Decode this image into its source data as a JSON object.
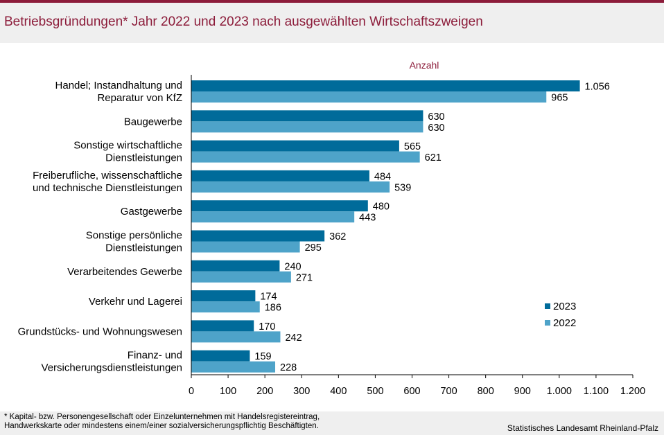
{
  "title": "Betriebsgründungen* Jahr 2022 und 2023  nach ausgewählten Wirtschaftszweigen",
  "footnote": {
    "line1": "* Kapital- bzw. Personengesellschaft  oder Einzelunternehmen  mit  Handelsregistereintrag,",
    "line2": "Handwerkskarte  oder mindestens  einem/einer  sozialversicherungspflichtig  Beschäftigten."
  },
  "source": "Statistisches Landesamt  Rheinland-Pfalz",
  "colors": {
    "series_2023": "#006b9a",
    "series_2022": "#4ea3c9",
    "title": "#8c1c3a",
    "axis": "#000000"
  },
  "chart_data": {
    "type": "bar",
    "orientation": "horizontal",
    "title": "Betriebsgründungen* Jahr 2022 und 2023  nach ausgewählten Wirtschaftszweigen",
    "xlabel": "Anzahl",
    "ylabel": "",
    "xlim": [
      0,
      1200
    ],
    "xticks": [
      0,
      100,
      200,
      300,
      400,
      500,
      600,
      700,
      800,
      900,
      1000,
      1100,
      1200
    ],
    "xtick_labels": [
      "0",
      "100",
      "200",
      "300",
      "400",
      "500",
      "600",
      "700",
      "800",
      "900",
      "1.000",
      "1.100",
      "1.200"
    ],
    "grid": false,
    "legend_position": "bottom-right",
    "categories": [
      [
        "Handel; Instandhaltung und",
        "Reparatur von KfZ"
      ],
      [
        "Baugewerbe"
      ],
      [
        "Sonstige wirtschaftliche",
        "Dienstleistungen"
      ],
      [
        "Freiberufliche, wissenschaftliche",
        "und technische Dienstleistungen"
      ],
      [
        "Gastgewerbe"
      ],
      [
        "Sonstige persönliche",
        "Dienstleistungen"
      ],
      [
        "Verarbeitendes Gewerbe"
      ],
      [
        "Verkehr und Lagerei"
      ],
      [
        "Grundstücks- und Wohnungswesen"
      ],
      [
        "Finanz- und",
        "Versicherungsdienstleistungen"
      ]
    ],
    "series": [
      {
        "name": "2023",
        "values": [
          1056,
          630,
          565,
          484,
          480,
          362,
          240,
          174,
          170,
          159
        ],
        "labels": [
          "1.056",
          "630",
          "565",
          "484",
          "480",
          "362",
          "240",
          "174",
          "170",
          "159"
        ]
      },
      {
        "name": "2022",
        "values": [
          965,
          630,
          621,
          539,
          443,
          295,
          271,
          186,
          242,
          228
        ],
        "labels": [
          "965",
          "630",
          "621",
          "539",
          "443",
          "295",
          "271",
          "186",
          "242",
          "228"
        ]
      }
    ]
  }
}
